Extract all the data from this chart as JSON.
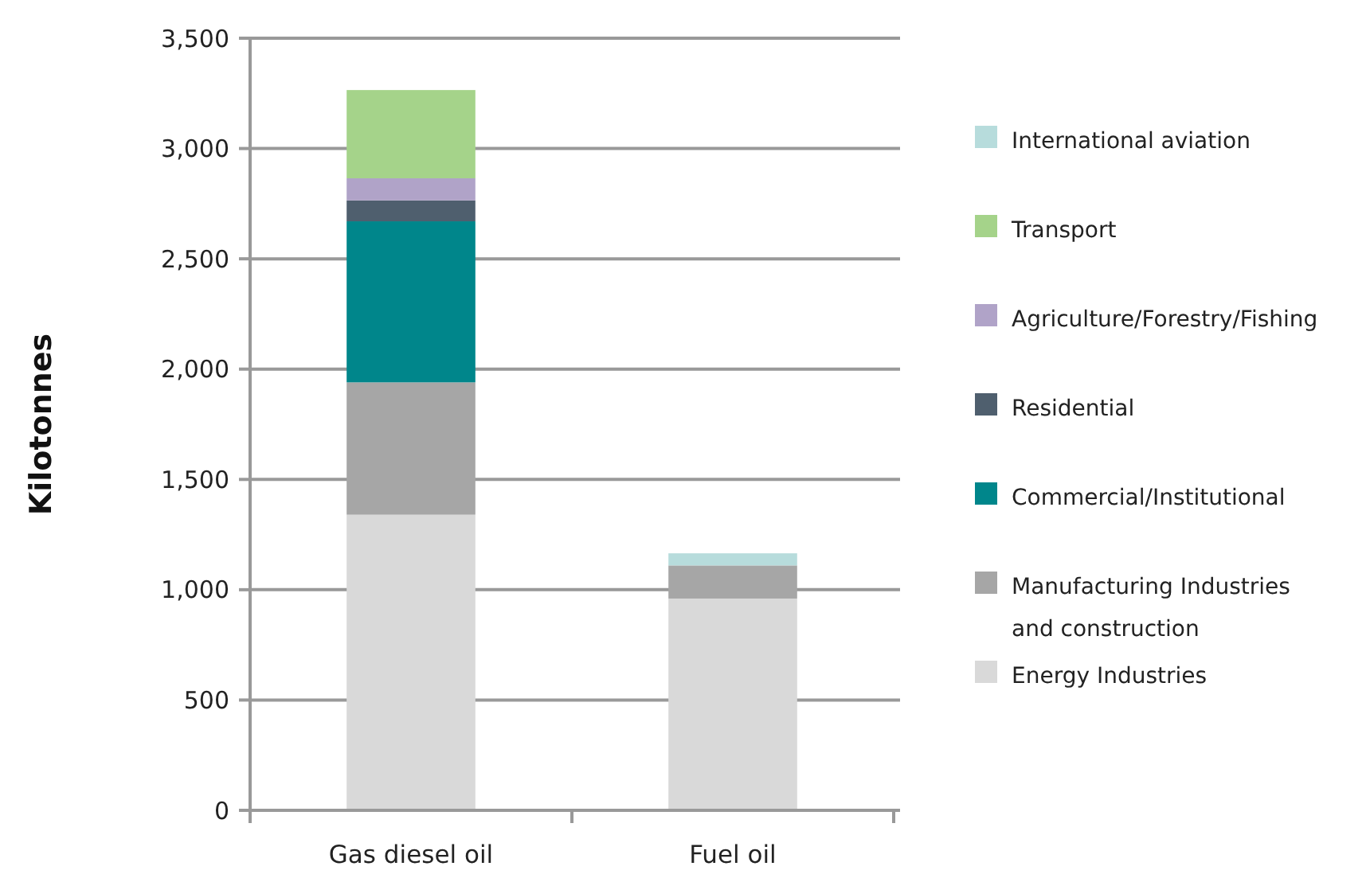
{
  "chart_data": {
    "type": "bar",
    "stacked": true,
    "ylabel": "Kilotonnes",
    "categories": [
      "Gas diesel oil",
      "Fuel oil"
    ],
    "series": [
      {
        "name": "Energy Industries",
        "color": "#d9d9d9",
        "values": [
          1340,
          960
        ]
      },
      {
        "name": "Manufacturing Industries and construction",
        "color": "#a6a6a6",
        "values": [
          600,
          150
        ]
      },
      {
        "name": "Commercial/Institutional",
        "color": "#00868b",
        "values": [
          730,
          0
        ]
      },
      {
        "name": "Residential",
        "color": "#4f5f6e",
        "values": [
          95,
          0
        ]
      },
      {
        "name": "Agriculture/Forestry/Fishing",
        "color": "#b0a3c8",
        "values": [
          100,
          0
        ]
      },
      {
        "name": "Transport",
        "color": "#a5d38a",
        "values": [
          400,
          0
        ]
      },
      {
        "name": "International aviation",
        "color": "#b7dcdc",
        "values": [
          0,
          55
        ]
      }
    ],
    "ylim": [
      0,
      3500
    ],
    "yticks": [
      {
        "value": 0,
        "label": "0"
      },
      {
        "value": 500,
        "label": "500"
      },
      {
        "value": 1000,
        "label": "1,000"
      },
      {
        "value": 1500,
        "label": "1,500"
      },
      {
        "value": 2000,
        "label": "2,000"
      },
      {
        "value": 2500,
        "label": "2,500"
      },
      {
        "value": 3000,
        "label": "3,000"
      },
      {
        "value": 3500,
        "label": "3,500"
      }
    ],
    "grid": "y",
    "legend": "right"
  }
}
